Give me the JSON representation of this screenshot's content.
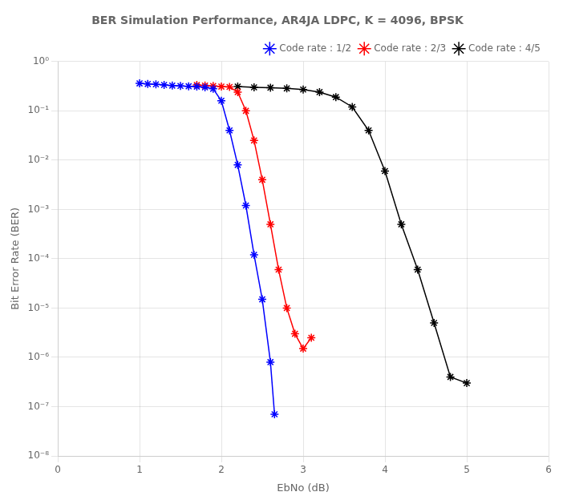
{
  "chart_data": {
    "type": "line",
    "title": "BER Simulation Performance, AR4JA LDPC, K = 4096, BPSK",
    "x_label": "EbNo (dB)",
    "y_label": "Bit Error Rate (BER)",
    "log": "y",
    "grid": true,
    "legend": "upper right",
    "marker": "star",
    "line_style": "solid",
    "xlim": [
      0,
      6
    ],
    "xticks": [
      0,
      1,
      2,
      3,
      4,
      5,
      6
    ],
    "ylim": [
      1e-08,
      1
    ],
    "yticks": [
      {
        "value": 1e-08,
        "label": "10⁻⁸"
      },
      {
        "value": 1e-07,
        "label": "10⁻⁷"
      },
      {
        "value": 1e-06,
        "label": "10⁻⁶"
      },
      {
        "value": 1e-05,
        "label": "10⁻⁵"
      },
      {
        "value": 0.0001,
        "label": "10⁻⁴"
      },
      {
        "value": 0.001,
        "label": "10⁻³"
      },
      {
        "value": 0.01,
        "label": "10⁻²"
      },
      {
        "value": 0.1,
        "label": "10⁻¹"
      },
      {
        "value": 1,
        "label": "10⁰"
      }
    ],
    "series": [
      {
        "name": "Code rate : 1/2",
        "color": "#0000ff",
        "x": [
          1.0,
          1.1,
          1.2,
          1.3,
          1.4,
          1.5,
          1.6,
          1.7,
          1.8,
          1.9,
          2.0,
          2.1,
          2.2,
          2.3,
          2.4,
          2.5,
          2.6,
          2.65
        ],
        "values": [
          0.36,
          0.35,
          0.345,
          0.335,
          0.325,
          0.32,
          0.315,
          0.31,
          0.3,
          0.28,
          0.16,
          0.04,
          0.008,
          0.0012,
          0.00012,
          1.5e-05,
          8e-07,
          7e-08
        ]
      },
      {
        "name": "Code rate : 2/3",
        "color": "#ff0000",
        "x": [
          1.7,
          1.8,
          1.9,
          2.0,
          2.1,
          2.2,
          2.3,
          2.4,
          2.5,
          2.6,
          2.7,
          2.8,
          2.9,
          3.0,
          3.1
        ],
        "values": [
          0.335,
          0.325,
          0.32,
          0.31,
          0.305,
          0.24,
          0.1,
          0.025,
          0.004,
          0.0005,
          6e-05,
          1e-05,
          3e-06,
          1.5e-06,
          2.5e-06
        ]
      },
      {
        "name": "Code rate : 4/5",
        "color": "#000000",
        "x": [
          2.2,
          2.4,
          2.6,
          2.8,
          3.0,
          3.2,
          3.4,
          3.6,
          3.8,
          4.0,
          4.2,
          4.4,
          4.6,
          4.8,
          5.0
        ],
        "values": [
          0.31,
          0.3,
          0.295,
          0.285,
          0.27,
          0.24,
          0.19,
          0.12,
          0.04,
          0.006,
          0.0005,
          6e-05,
          5e-06,
          4e-07,
          3e-07
        ]
      }
    ]
  }
}
